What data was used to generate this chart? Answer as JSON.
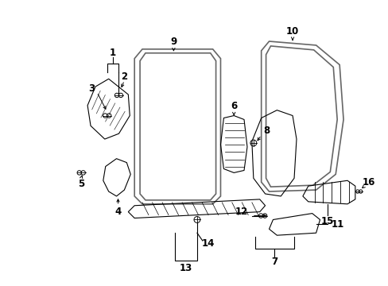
{
  "background_color": "#ffffff",
  "fig_width": 4.89,
  "fig_height": 3.6,
  "dpi": 100,
  "lc": "#000000",
  "gray": "#666666",
  "label_fontsize": 8.5
}
